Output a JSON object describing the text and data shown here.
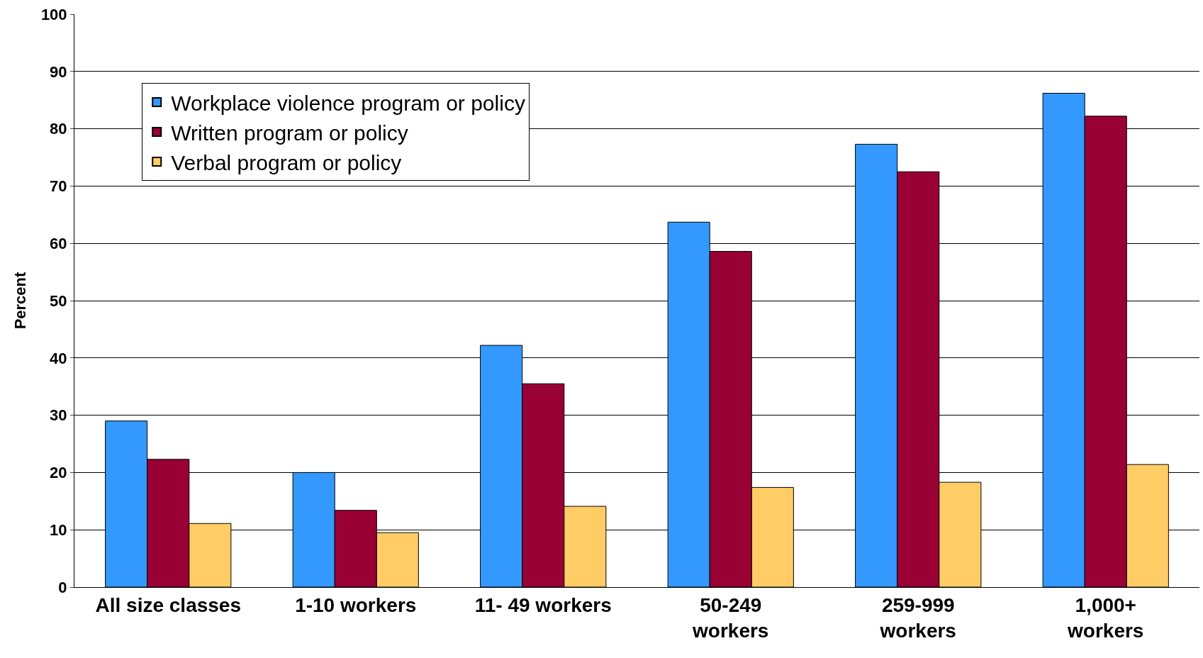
{
  "chart_data": {
    "type": "bar",
    "ylabel": "Percent",
    "categories": [
      "All size classes",
      "1-10 workers",
      "11- 49 workers",
      "50-249\nworkers",
      "259-999\nworkers",
      "1,000+\nworkers"
    ],
    "series": [
      {
        "name": "Workplace violence program or policy",
        "color": "#3399ff",
        "values": [
          29.0,
          20.0,
          42.2,
          63.7,
          77.3,
          86.2
        ]
      },
      {
        "name": "Written program or policy",
        "color": "#990033",
        "values": [
          22.3,
          13.4,
          35.5,
          58.6,
          72.5,
          82.2
        ]
      },
      {
        "name": "Verbal program or policy",
        "color": "#ffcc66",
        "values": [
          11.1,
          9.5,
          14.1,
          17.4,
          18.3,
          21.4
        ]
      }
    ],
    "ylim": [
      0,
      100
    ],
    "yticks": [
      0,
      10,
      20,
      30,
      40,
      50,
      60,
      70,
      80,
      90,
      100
    ],
    "grid": "y",
    "legend": "top left"
  }
}
